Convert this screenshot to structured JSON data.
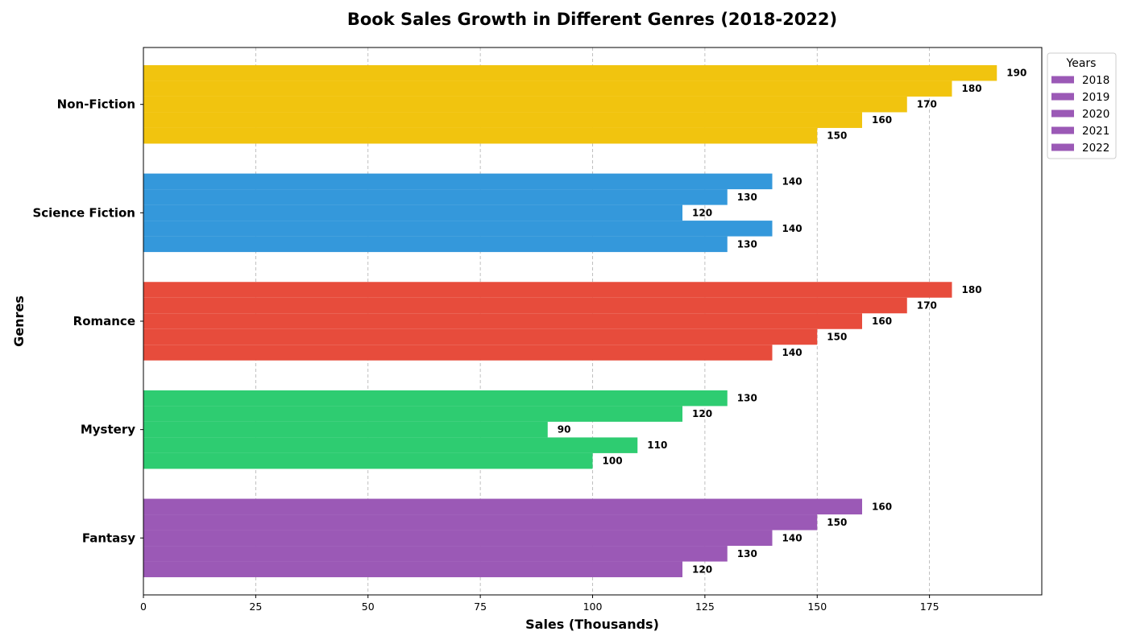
{
  "chart_data": {
    "type": "bar",
    "orientation": "horizontal",
    "title": "Book Sales Growth in Different Genres (2018-2022)",
    "xlabel": "Sales (Thousands)",
    "ylabel": "Genres",
    "xlim": [
      0,
      200
    ],
    "xticks": [
      "0",
      "25",
      "50",
      "75",
      "100",
      "125",
      "150",
      "175"
    ],
    "categories": [
      "Fantasy",
      "Mystery",
      "Romance",
      "Science Fiction",
      "Non-Fiction"
    ],
    "category_colors": [
      "#9b59b6",
      "#2ecc71",
      "#e74c3c",
      "#3498db",
      "#f1c40f"
    ],
    "series": [
      {
        "name": "2018",
        "values": [
          120,
          100,
          140,
          130,
          150
        ]
      },
      {
        "name": "2019",
        "values": [
          130,
          110,
          150,
          140,
          160
        ]
      },
      {
        "name": "2020",
        "values": [
          140,
          90,
          160,
          120,
          170
        ]
      },
      {
        "name": "2021",
        "values": [
          150,
          120,
          170,
          130,
          180
        ]
      },
      {
        "name": "2022",
        "values": [
          160,
          130,
          180,
          140,
          190
        ]
      }
    ],
    "legend": {
      "title": "Years",
      "position": "upper-right-outside",
      "swatch_color": "#9b59b6"
    },
    "grid": {
      "x": true,
      "y": false,
      "style": "dashed"
    }
  }
}
